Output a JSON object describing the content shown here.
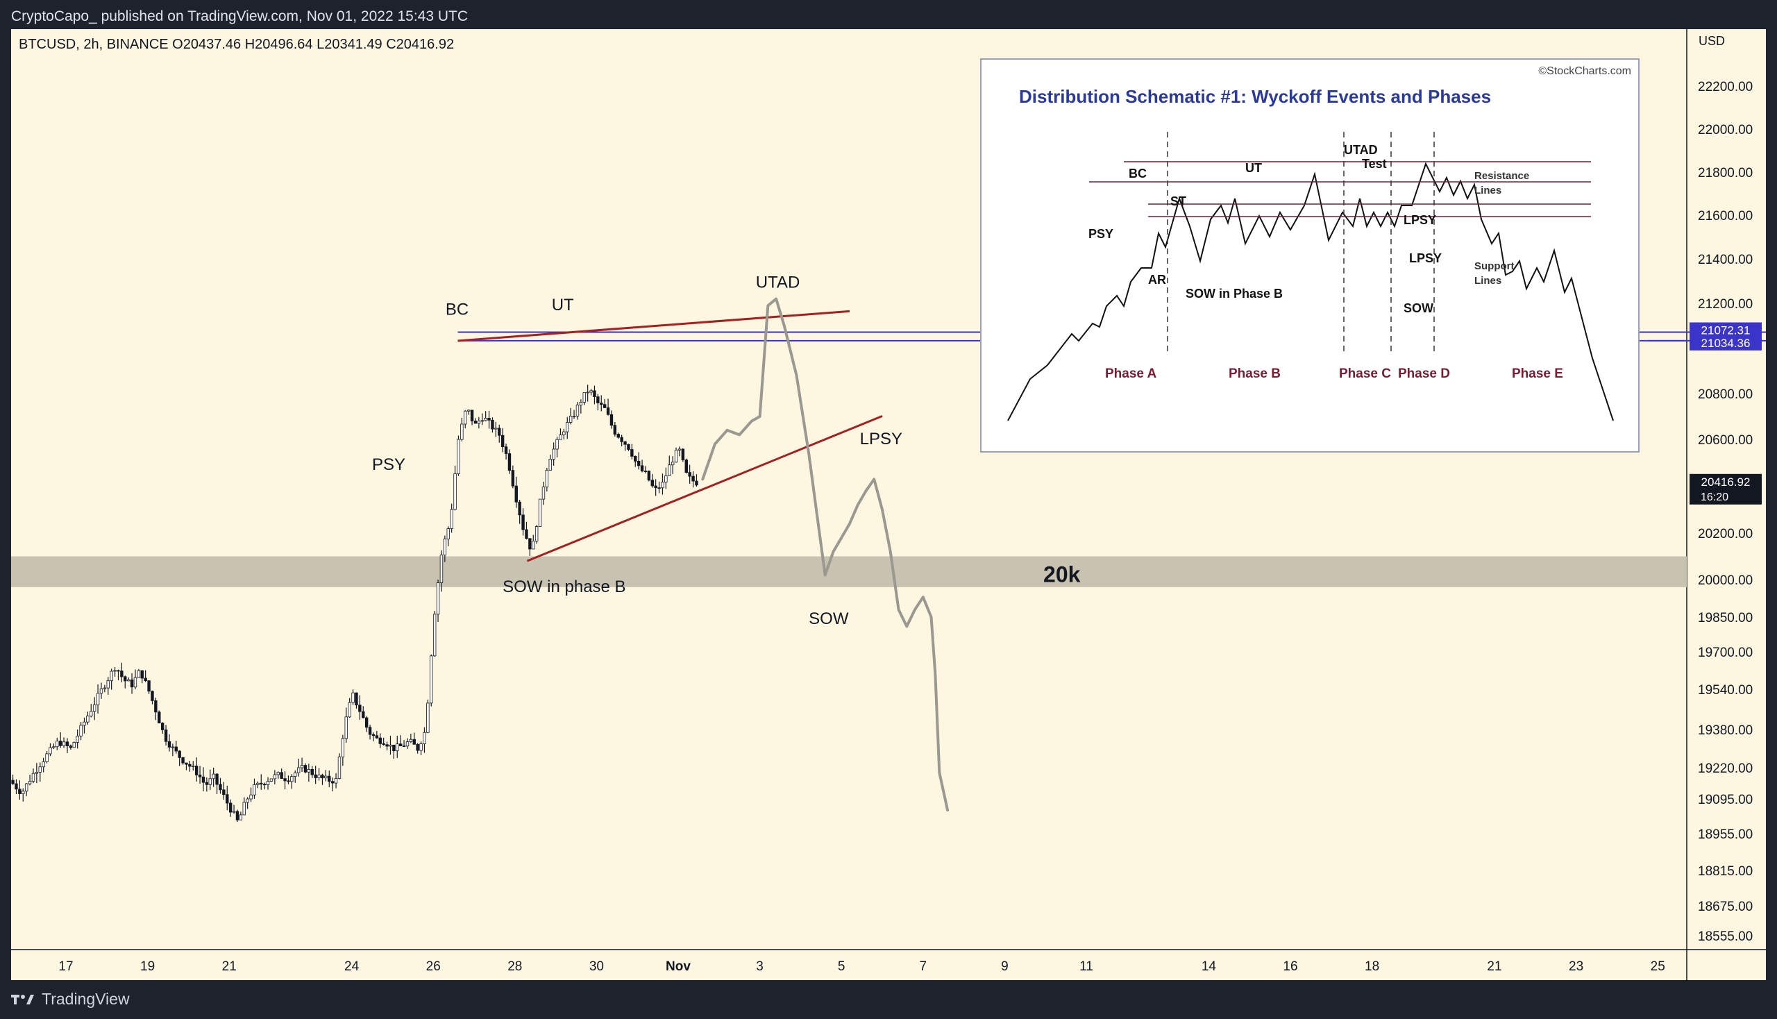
{
  "header": {
    "published": "CryptoCapo_ published on TradingView.com, Nov 01, 2022 15:43 UTC",
    "symbol_line": "BTCUSD, 2h, BINANCE  O20437.46  H20496.64  L20341.49  C20416.92",
    "axis_unit": "USD"
  },
  "footer": {
    "brand": "TradingView"
  },
  "chart_data": {
    "type": "candlestick",
    "symbol": "BTCUSD",
    "interval": "2h",
    "exchange": "BINANCE",
    "ohlc_last": {
      "open": 20437.46,
      "high": 20496.64,
      "low": 20341.49,
      "close": 20416.92
    },
    "y_ticks": [
      22200,
      22000,
      21800,
      21600,
      21400,
      21200,
      20800,
      20600,
      20200,
      20000,
      19850,
      19700,
      19540,
      19380,
      19220,
      19095,
      18955,
      18815,
      18675,
      18555
    ],
    "y_tick_labels": [
      "22200.00",
      "22000.00",
      "21800.00",
      "21600.00",
      "21400.00",
      "21200.00",
      "20800.00",
      "20600.00",
      "20200.00",
      "20000.00",
      "19850.00",
      "19700.00",
      "19540.00",
      "19380.00",
      "19220.00",
      "19095.00",
      "18955.00",
      "18815.00",
      "18675.00",
      "18555.00"
    ],
    "x_ticks": [
      {
        "label": "17",
        "x": 0
      },
      {
        "label": "19",
        "x": 2
      },
      {
        "label": "21",
        "x": 4
      },
      {
        "label": "24",
        "x": 7
      },
      {
        "label": "26",
        "x": 9
      },
      {
        "label": "28",
        "x": 11
      },
      {
        "label": "30",
        "x": 13
      },
      {
        "label": "Nov",
        "x": 15
      },
      {
        "label": "3",
        "x": 17
      },
      {
        "label": "5",
        "x": 19
      },
      {
        "label": "7",
        "x": 21
      },
      {
        "label": "9",
        "x": 23
      },
      {
        "label": "11",
        "x": 25
      },
      {
        "label": "14",
        "x": 28
      },
      {
        "label": "16",
        "x": 30
      },
      {
        "label": "18",
        "x": 32
      },
      {
        "label": "21",
        "x": 35
      },
      {
        "label": "23",
        "x": 37
      },
      {
        "label": "25",
        "x": 39
      }
    ],
    "x_range": [
      -1.3,
      39.8
    ],
    "y_range": [
      18480,
      22320
    ],
    "key_price_lines": [
      {
        "label": "21072.31",
        "value": 21072.31,
        "color": "#3b34c9"
      },
      {
        "label": "21034.36",
        "value": 21034.36,
        "color": "#3b34c9"
      }
    ],
    "last_price": {
      "label": "20416.92",
      "value": 20416.92,
      "countdown": "16:20"
    },
    "zone": {
      "label": "20k",
      "from": 19970,
      "to": 20100
    },
    "trendlines": [
      {
        "from": [
          9.6,
          21034
        ],
        "to": [
          19.2,
          21165
        ],
        "color": "#a52020"
      },
      {
        "from": [
          11.3,
          20080
        ],
        "to": [
          20.0,
          20702
        ],
        "color": "#a52020"
      }
    ],
    "price_path": [
      [
        -1.3,
        19170
      ],
      [
        -1.0,
        19120
      ],
      [
        -0.7,
        19200
      ],
      [
        -0.4,
        19270
      ],
      [
        -0.1,
        19330
      ],
      [
        0.2,
        19300
      ],
      [
        0.5,
        19400
      ],
      [
        0.8,
        19490
      ],
      [
        1.1,
        19580
      ],
      [
        1.3,
        19640
      ],
      [
        1.5,
        19580
      ],
      [
        1.7,
        19560
      ],
      [
        1.9,
        19620
      ],
      [
        2.1,
        19540
      ],
      [
        2.3,
        19450
      ],
      [
        2.5,
        19350
      ],
      [
        2.7,
        19300
      ],
      [
        2.9,
        19260
      ],
      [
        3.1,
        19230
      ],
      [
        3.3,
        19200
      ],
      [
        3.5,
        19150
      ],
      [
        3.7,
        19180
      ],
      [
        3.9,
        19120
      ],
      [
        4.1,
        19060
      ],
      [
        4.3,
        19000
      ],
      [
        4.5,
        19090
      ],
      [
        4.7,
        19140
      ],
      [
        4.9,
        19160
      ],
      [
        5.1,
        19180
      ],
      [
        5.3,
        19190
      ],
      [
        5.5,
        19175
      ],
      [
        5.7,
        19200
      ],
      [
        5.9,
        19220
      ],
      [
        6.1,
        19200
      ],
      [
        6.3,
        19180
      ],
      [
        6.5,
        19170
      ],
      [
        6.7,
        19170
      ],
      [
        6.9,
        19390
      ],
      [
        7.1,
        19520
      ],
      [
        7.3,
        19450
      ],
      [
        7.5,
        19370
      ],
      [
        7.7,
        19340
      ],
      [
        7.9,
        19330
      ],
      [
        8.1,
        19300
      ],
      [
        8.3,
        19310
      ],
      [
        8.5,
        19330
      ],
      [
        8.7,
        19300
      ],
      [
        8.9,
        19380
      ],
      [
        9.1,
        19850
      ],
      [
        9.3,
        20130
      ],
      [
        9.5,
        20250
      ],
      [
        9.7,
        20600
      ],
      [
        9.9,
        20740
      ],
      [
        10.1,
        20660
      ],
      [
        10.3,
        20700
      ],
      [
        10.5,
        20660
      ],
      [
        10.7,
        20620
      ],
      [
        10.9,
        20520
      ],
      [
        11.1,
        20360
      ],
      [
        11.3,
        20210
      ],
      [
        11.5,
        20120
      ],
      [
        11.7,
        20330
      ],
      [
        11.9,
        20510
      ],
      [
        12.1,
        20580
      ],
      [
        12.3,
        20650
      ],
      [
        12.5,
        20700
      ],
      [
        12.7,
        20770
      ],
      [
        12.9,
        20820
      ],
      [
        13.1,
        20760
      ],
      [
        13.3,
        20730
      ],
      [
        13.5,
        20640
      ],
      [
        13.7,
        20600
      ],
      [
        13.9,
        20560
      ],
      [
        14.1,
        20480
      ],
      [
        14.3,
        20450
      ],
      [
        14.5,
        20380
      ],
      [
        14.7,
        20410
      ],
      [
        14.9,
        20500
      ],
      [
        15.1,
        20560
      ],
      [
        15.3,
        20440
      ],
      [
        15.5,
        20417
      ]
    ],
    "projection": [
      [
        15.6,
        20430
      ],
      [
        15.9,
        20580
      ],
      [
        16.2,
        20640
      ],
      [
        16.5,
        20620
      ],
      [
        16.8,
        20680
      ],
      [
        17.0,
        20700
      ],
      [
        17.2,
        21190
      ],
      [
        17.4,
        21220
      ],
      [
        17.6,
        21100
      ],
      [
        17.9,
        20880
      ],
      [
        18.2,
        20540
      ],
      [
        18.4,
        20280
      ],
      [
        18.6,
        20020
      ],
      [
        18.8,
        20120
      ],
      [
        19.0,
        20180
      ],
      [
        19.2,
        20240
      ],
      [
        19.4,
        20320
      ],
      [
        19.6,
        20380
      ],
      [
        19.8,
        20430
      ],
      [
        20.0,
        20300
      ],
      [
        20.2,
        20120
      ],
      [
        20.4,
        19880
      ],
      [
        20.6,
        19810
      ],
      [
        20.8,
        19880
      ],
      [
        21.0,
        19930
      ],
      [
        21.2,
        19850
      ],
      [
        21.3,
        19600
      ],
      [
        21.4,
        19200
      ],
      [
        21.6,
        19050
      ]
    ],
    "annotations": [
      {
        "text": "BC"
      },
      {
        "text": "UT"
      },
      {
        "text": "UTAD"
      },
      {
        "text": "PSY"
      },
      {
        "text": "LPSY"
      },
      {
        "text": "SOW in phase B"
      },
      {
        "text": "SOW"
      },
      {
        "text": "20k"
      }
    ],
    "inset": {
      "title": "Distribution Schematic #1: Wyckoff Events and Phases",
      "credit": "©StockCharts.com",
      "events": [
        "BC",
        "UT",
        "UTAD",
        "Test",
        "ST",
        "PSY",
        "AR",
        "LPSY",
        "LPSY",
        "SOW",
        "SOW in Phase B"
      ],
      "line_labels": [
        "Resistance",
        "Lines",
        "Support",
        "Lines"
      ],
      "phases": [
        "Phase A",
        "Phase B",
        "Phase C",
        "Phase D",
        "Phase E"
      ]
    }
  },
  "colors": {
    "background": "#fdf6e0",
    "frame": "#1e222d",
    "zone": "#c8c2b0",
    "trendline": "#a52020",
    "key_line": "#3b34c9",
    "projection": "#9a9890",
    "candle_up": "#ffffff",
    "candle_down": "#131722",
    "inset_title": "#2b3a9a",
    "phase_text": "#7a1c32"
  }
}
